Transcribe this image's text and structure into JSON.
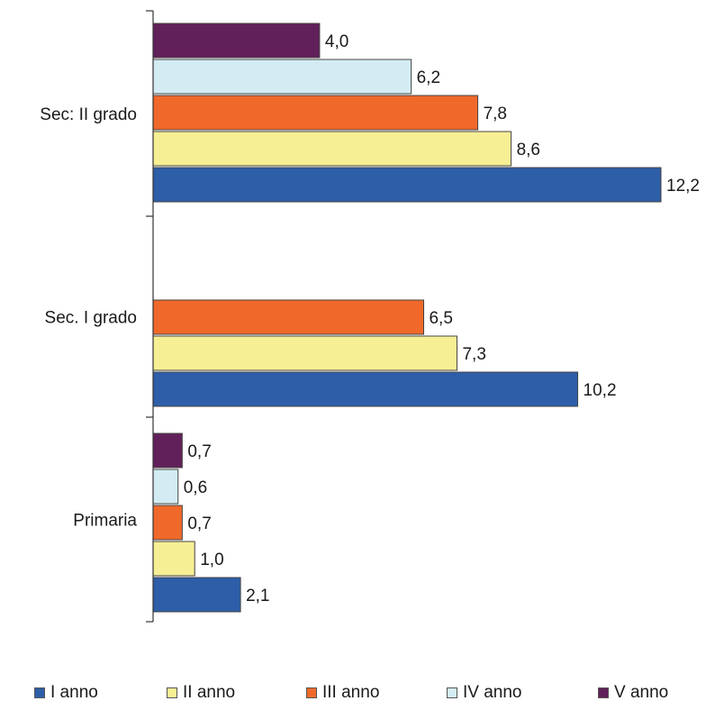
{
  "chart_data": {
    "type": "bar",
    "orientation": "horizontal",
    "categories": [
      "Sec: II grado",
      "Sec. I grado",
      "Primaria"
    ],
    "series": [
      {
        "name": "I anno",
        "color": "#2e5ea8",
        "values": [
          12.2,
          10.2,
          2.1
        ]
      },
      {
        "name": "II anno",
        "color": "#f7ef94",
        "values": [
          8.6,
          7.3,
          1.0
        ]
      },
      {
        "name": "III anno",
        "color": "#f0692a",
        "values": [
          7.8,
          6.5,
          0.7
        ]
      },
      {
        "name": "IV anno",
        "color": "#d3ecf3",
        "values": [
          6.2,
          null,
          0.6
        ]
      },
      {
        "name": "V anno",
        "color": "#62205a",
        "values": [
          4.0,
          null,
          0.7
        ]
      }
    ],
    "data_labels": [
      [
        "12,2",
        "8,6",
        "7,8",
        "6,2",
        "4,0"
      ],
      [
        "10,2",
        "7,3",
        "6,5",
        "",
        ""
      ],
      [
        "2,1",
        "1,0",
        "0,7",
        "0,6",
        "0,7"
      ]
    ],
    "xlim": [
      0,
      13
    ],
    "grid": false,
    "legend_position": "bottom"
  }
}
